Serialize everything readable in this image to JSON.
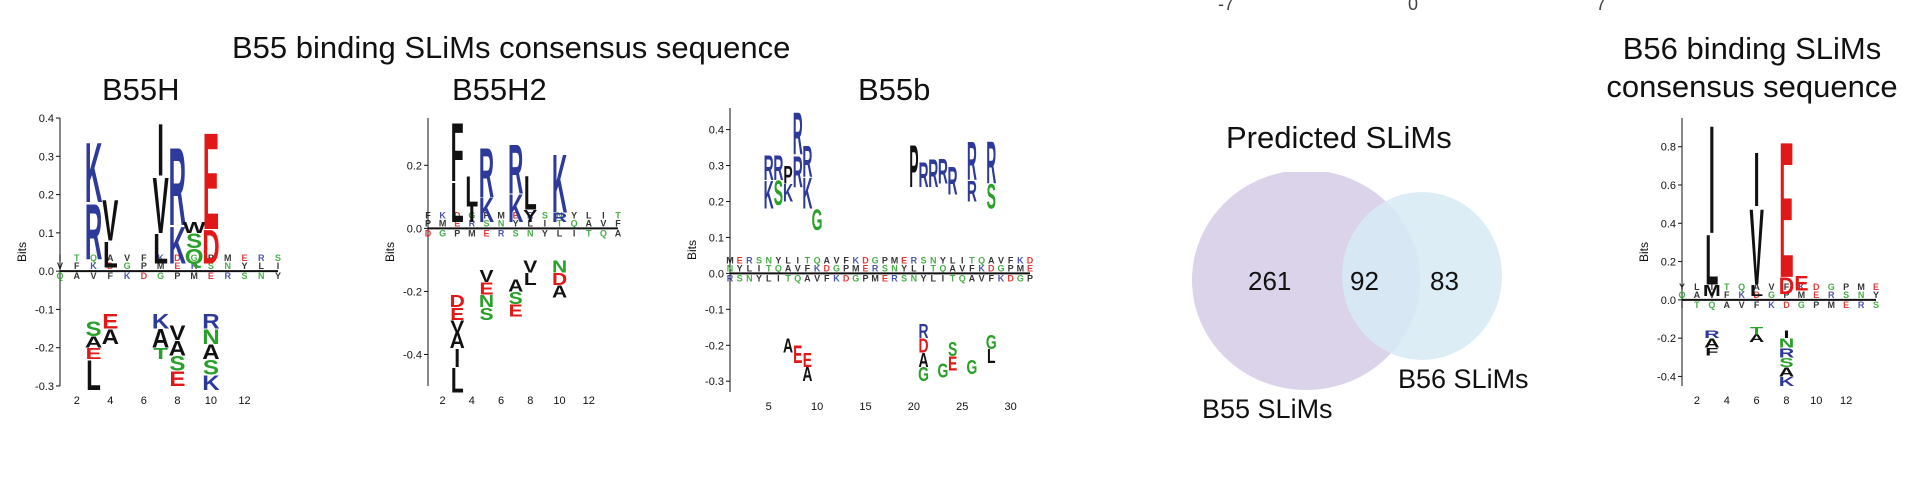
{
  "top_cut_text": [
    "-7",
    "0",
    "7"
  ],
  "b55_group_title": "B55 binding SLiMs consensus sequence",
  "b56_group_title": [
    "B56 binding SLiMs",
    "consensus sequence"
  ],
  "venn": {
    "title": "Predicted SLiMs",
    "left_only": "261",
    "overlap": "92",
    "right_only": "83",
    "left_label": "B55 SLiMs",
    "right_label": "B56 SLiMs",
    "left_color": "#d9d1e8",
    "right_color": "#d6eaf4"
  },
  "colors": {
    "basic": "#2e3a9a",
    "acidic": "#e01818",
    "polar": "#2aa02a",
    "hydrophobic": "#111111",
    "baseline": "#111111"
  },
  "chart_data": [
    {
      "type": "sequence-logo",
      "title": "B55H",
      "ylabel": "Bits",
      "ylim": [
        -0.3,
        0.4
      ],
      "yticks": [
        "0.4",
        "0.3",
        "0.2",
        "0.1",
        "0.0",
        "-0.1",
        "-0.2",
        "-0.3"
      ],
      "xticks": [
        "2",
        "4",
        "6",
        "8",
        "10",
        "12"
      ],
      "xlim": [
        1,
        14
      ],
      "letters": [
        {
          "pos": 3,
          "char": "K",
          "lo": 0.18,
          "hi": 0.34,
          "color": "basic"
        },
        {
          "pos": 3,
          "char": "R",
          "lo": 0.03,
          "hi": 0.18,
          "color": "basic"
        },
        {
          "pos": 4,
          "char": "V",
          "lo": 0.08,
          "hi": 0.19,
          "color": "hydrophobic"
        },
        {
          "pos": 4,
          "char": "L",
          "lo": 0.01,
          "hi": 0.08,
          "color": "hydrophobic"
        },
        {
          "pos": 7,
          "char": "I",
          "lo": 0.25,
          "hi": 0.39,
          "color": "hydrophobic"
        },
        {
          "pos": 7,
          "char": "V",
          "lo": 0.1,
          "hi": 0.25,
          "color": "hydrophobic"
        },
        {
          "pos": 7,
          "char": "L",
          "lo": 0.02,
          "hi": 0.1,
          "color": "hydrophobic"
        },
        {
          "pos": 8,
          "char": "R",
          "lo": 0.12,
          "hi": 0.33,
          "color": "basic"
        },
        {
          "pos": 8,
          "char": "K",
          "lo": 0.02,
          "hi": 0.12,
          "color": "basic"
        },
        {
          "pos": 9,
          "char": "W",
          "lo": 0.1,
          "hi": 0.13,
          "color": "hydrophobic"
        },
        {
          "pos": 9,
          "char": "S",
          "lo": 0.06,
          "hi": 0.1,
          "color": "polar"
        },
        {
          "pos": 9,
          "char": "Q",
          "lo": 0.02,
          "hi": 0.06,
          "color": "polar"
        },
        {
          "pos": 10,
          "char": "E",
          "lo": 0.11,
          "hi": 0.37,
          "color": "acidic"
        },
        {
          "pos": 10,
          "char": "D",
          "lo": 0.02,
          "hi": 0.11,
          "color": "acidic"
        },
        {
          "pos": 3,
          "char": "E",
          "lo": -0.23,
          "hi": -0.2,
          "color": "acidic"
        },
        {
          "pos": 3,
          "char": "L",
          "lo": -0.31,
          "hi": -0.23,
          "color": "hydrophobic"
        },
        {
          "pos": 3,
          "char": "A",
          "lo": -0.2,
          "hi": -0.17,
          "color": "hydrophobic"
        },
        {
          "pos": 3,
          "char": "S",
          "lo": -0.17,
          "hi": -0.13,
          "color": "polar"
        },
        {
          "pos": 4,
          "char": "A",
          "lo": -0.19,
          "hi": -0.15,
          "color": "hydrophobic"
        },
        {
          "pos": 4,
          "char": "E",
          "lo": -0.15,
          "hi": -0.11,
          "color": "acidic"
        },
        {
          "pos": 7,
          "char": "T",
          "lo": -0.23,
          "hi": -0.2,
          "color": "polar"
        },
        {
          "pos": 7,
          "char": "A",
          "lo": -0.2,
          "hi": -0.15,
          "color": "hydrophobic"
        },
        {
          "pos": 7,
          "char": "K",
          "lo": -0.15,
          "hi": -0.11,
          "color": "basic"
        },
        {
          "pos": 8,
          "char": "E",
          "lo": -0.3,
          "hi": -0.26,
          "color": "acidic"
        },
        {
          "pos": 8,
          "char": "S",
          "lo": -0.26,
          "hi": -0.22,
          "color": "polar"
        },
        {
          "pos": 8,
          "char": "A",
          "lo": -0.22,
          "hi": -0.18,
          "color": "hydrophobic"
        },
        {
          "pos": 8,
          "char": "V",
          "lo": -0.18,
          "hi": -0.14,
          "color": "hydrophobic"
        },
        {
          "pos": 10,
          "char": "K",
          "lo": -0.31,
          "hi": -0.27,
          "color": "basic"
        },
        {
          "pos": 10,
          "char": "S",
          "lo": -0.27,
          "hi": -0.23,
          "color": "polar"
        },
        {
          "pos": 10,
          "char": "A",
          "lo": -0.23,
          "hi": -0.19,
          "color": "hydrophobic"
        },
        {
          "pos": 10,
          "char": "N",
          "lo": -0.19,
          "hi": -0.15,
          "color": "polar"
        },
        {
          "pos": 10,
          "char": "R",
          "lo": -0.15,
          "hi": -0.11,
          "color": "basic"
        }
      ]
    },
    {
      "type": "sequence-logo",
      "title": "B55H2",
      "ylabel": "Bits",
      "ylim": [
        -0.5,
        0.35
      ],
      "yticks": [
        "0.2",
        "0.0",
        "-0.2",
        "-0.4"
      ],
      "xticks": [
        "2",
        "4",
        "6",
        "8",
        "10",
        "12"
      ],
      "xlim": [
        1,
        14
      ],
      "letters": [
        {
          "pos": 3,
          "char": "F",
          "lo": 0.15,
          "hi": 0.34,
          "color": "hydrophobic"
        },
        {
          "pos": 3,
          "char": "L",
          "lo": 0.02,
          "hi": 0.15,
          "color": "hydrophobic"
        },
        {
          "pos": 4,
          "char": "L",
          "lo": 0.07,
          "hi": 0.17,
          "color": "hydrophobic"
        },
        {
          "pos": 4,
          "char": "I",
          "lo": 0.02,
          "hi": 0.07,
          "color": "hydrophobic"
        },
        {
          "pos": 5,
          "char": "R",
          "lo": 0.1,
          "hi": 0.26,
          "color": "basic"
        },
        {
          "pos": 5,
          "char": "K",
          "lo": 0.02,
          "hi": 0.1,
          "color": "basic"
        },
        {
          "pos": 7,
          "char": "R",
          "lo": 0.11,
          "hi": 0.27,
          "color": "basic"
        },
        {
          "pos": 7,
          "char": "K",
          "lo": 0.02,
          "hi": 0.11,
          "color": "basic"
        },
        {
          "pos": 8,
          "char": "L",
          "lo": 0.06,
          "hi": 0.17,
          "color": "hydrophobic"
        },
        {
          "pos": 8,
          "char": "Y",
          "lo": 0.02,
          "hi": 0.06,
          "color": "hydrophobic"
        },
        {
          "pos": 10,
          "char": "K",
          "lo": 0.05,
          "hi": 0.24,
          "color": "basic"
        },
        {
          "pos": 10,
          "char": "R",
          "lo": 0.02,
          "hi": 0.05,
          "color": "basic"
        },
        {
          "pos": 3,
          "char": "L",
          "lo": -0.52,
          "hi": -0.44,
          "color": "hydrophobic"
        },
        {
          "pos": 3,
          "char": "I",
          "lo": -0.44,
          "hi": -0.38,
          "color": "hydrophobic"
        },
        {
          "pos": 3,
          "char": "A",
          "lo": -0.38,
          "hi": -0.33,
          "color": "hydrophobic"
        },
        {
          "pos": 3,
          "char": "V",
          "lo": -0.33,
          "hi": -0.29,
          "color": "hydrophobic"
        },
        {
          "pos": 3,
          "char": "E",
          "lo": -0.29,
          "hi": -0.25,
          "color": "acidic"
        },
        {
          "pos": 3,
          "char": "D",
          "lo": -0.25,
          "hi": -0.21,
          "color": "acidic"
        },
        {
          "pos": 5,
          "char": "S",
          "lo": -0.29,
          "hi": -0.25,
          "color": "polar"
        },
        {
          "pos": 5,
          "char": "N",
          "lo": -0.25,
          "hi": -0.21,
          "color": "polar"
        },
        {
          "pos": 5,
          "char": "E",
          "lo": -0.21,
          "hi": -0.17,
          "color": "acidic"
        },
        {
          "pos": 5,
          "char": "V",
          "lo": -0.17,
          "hi": -0.13,
          "color": "hydrophobic"
        },
        {
          "pos": 7,
          "char": "E",
          "lo": -0.28,
          "hi": -0.24,
          "color": "acidic"
        },
        {
          "pos": 7,
          "char": "S",
          "lo": -0.24,
          "hi": -0.2,
          "color": "polar"
        },
        {
          "pos": 7,
          "char": "A",
          "lo": -0.2,
          "hi": -0.16,
          "color": "hydrophobic"
        },
        {
          "pos": 8,
          "char": "L",
          "lo": -0.18,
          "hi": -0.14,
          "color": "hydrophobic"
        },
        {
          "pos": 8,
          "char": "V",
          "lo": -0.14,
          "hi": -0.1,
          "color": "hydrophobic"
        },
        {
          "pos": 10,
          "char": "A",
          "lo": -0.22,
          "hi": -0.18,
          "color": "hydrophobic"
        },
        {
          "pos": 10,
          "char": "D",
          "lo": -0.18,
          "hi": -0.14,
          "color": "acidic"
        },
        {
          "pos": 10,
          "char": "N",
          "lo": -0.14,
          "hi": -0.1,
          "color": "polar"
        }
      ]
    },
    {
      "type": "sequence-logo",
      "title": "B55b",
      "ylabel": "Bits",
      "ylim": [
        -0.33,
        0.46
      ],
      "yticks": [
        "0.4",
        "0.3",
        "0.2",
        "0.1",
        "0.0",
        "-0.1",
        "-0.2",
        "-0.3"
      ],
      "xticks": [
        "5",
        "10",
        "15",
        "20",
        "25",
        "30"
      ],
      "xlim": [
        1,
        32
      ],
      "letters": [
        {
          "pos": 5,
          "char": "R",
          "lo": 0.26,
          "hi": 0.33,
          "color": "basic"
        },
        {
          "pos": 5,
          "char": "K",
          "lo": 0.18,
          "hi": 0.26,
          "color": "basic"
        },
        {
          "pos": 6,
          "char": "R",
          "lo": 0.26,
          "hi": 0.33,
          "color": "basic"
        },
        {
          "pos": 6,
          "char": "S",
          "lo": 0.19,
          "hi": 0.26,
          "color": "polar"
        },
        {
          "pos": 7,
          "char": "P",
          "lo": 0.25,
          "hi": 0.3,
          "color": "hydrophobic"
        },
        {
          "pos": 7,
          "char": "K",
          "lo": 0.2,
          "hi": 0.25,
          "color": "basic"
        },
        {
          "pos": 8,
          "char": "R",
          "lo": 0.33,
          "hi": 0.45,
          "color": "basic"
        },
        {
          "pos": 8,
          "char": "R",
          "lo": 0.24,
          "hi": 0.33,
          "color": "basic"
        },
        {
          "pos": 9,
          "char": "R",
          "lo": 0.27,
          "hi": 0.36,
          "color": "basic"
        },
        {
          "pos": 9,
          "char": "K",
          "lo": 0.18,
          "hi": 0.27,
          "color": "basic"
        },
        {
          "pos": 10,
          "char": "G",
          "lo": 0.12,
          "hi": 0.18,
          "color": "polar"
        },
        {
          "pos": 20,
          "char": "P",
          "lo": 0.24,
          "hi": 0.36,
          "color": "hydrophobic"
        },
        {
          "pos": 21,
          "char": "R",
          "lo": 0.24,
          "hi": 0.31,
          "color": "basic"
        },
        {
          "pos": 22,
          "char": "R",
          "lo": 0.24,
          "hi": 0.32,
          "color": "basic"
        },
        {
          "pos": 23,
          "char": "R",
          "lo": 0.25,
          "hi": 0.32,
          "color": "basic"
        },
        {
          "pos": 24,
          "char": "R",
          "lo": 0.22,
          "hi": 0.3,
          "color": "basic"
        },
        {
          "pos": 26,
          "char": "R",
          "lo": 0.26,
          "hi": 0.37,
          "color": "basic"
        },
        {
          "pos": 26,
          "char": "R",
          "lo": 0.2,
          "hi": 0.26,
          "color": "basic"
        },
        {
          "pos": 28,
          "char": "R",
          "lo": 0.25,
          "hi": 0.37,
          "color": "basic"
        },
        {
          "pos": 28,
          "char": "S",
          "lo": 0.18,
          "hi": 0.25,
          "color": "polar"
        },
        {
          "pos": 7,
          "char": "A",
          "lo": -0.22,
          "hi": -0.18,
          "color": "hydrophobic"
        },
        {
          "pos": 8,
          "char": "E",
          "lo": -0.25,
          "hi": -0.2,
          "color": "acidic"
        },
        {
          "pos": 9,
          "char": "A",
          "lo": -0.3,
          "hi": -0.26,
          "color": "hydrophobic"
        },
        {
          "pos": 9,
          "char": "E",
          "lo": -0.26,
          "hi": -0.22,
          "color": "acidic"
        },
        {
          "pos": 21,
          "char": "G",
          "lo": -0.3,
          "hi": -0.26,
          "color": "polar"
        },
        {
          "pos": 21,
          "char": "A",
          "lo": -0.26,
          "hi": -0.22,
          "color": "hydrophobic"
        },
        {
          "pos": 21,
          "char": "D",
          "lo": -0.22,
          "hi": -0.18,
          "color": "acidic"
        },
        {
          "pos": 21,
          "char": "R",
          "lo": -0.18,
          "hi": -0.14,
          "color": "basic"
        },
        {
          "pos": 23,
          "char": "G",
          "lo": -0.29,
          "hi": -0.25,
          "color": "polar"
        },
        {
          "pos": 24,
          "char": "E",
          "lo": -0.27,
          "hi": -0.23,
          "color": "acidic"
        },
        {
          "pos": 24,
          "char": "S",
          "lo": -0.23,
          "hi": -0.19,
          "color": "polar"
        },
        {
          "pos": 26,
          "char": "G",
          "lo": -0.28,
          "hi": -0.24,
          "color": "polar"
        },
        {
          "pos": 28,
          "char": "L",
          "lo": -0.25,
          "hi": -0.21,
          "color": "hydrophobic"
        },
        {
          "pos": 28,
          "char": "G",
          "lo": -0.21,
          "hi": -0.17,
          "color": "polar"
        }
      ]
    },
    {
      "type": "sequence-logo",
      "title": "",
      "ylabel": "Bits",
      "ylim": [
        -0.45,
        0.95
      ],
      "yticks": [
        "0.8",
        "0.6",
        "0.4",
        "0.2",
        "0.0",
        "-0.2",
        "-0.4"
      ],
      "xticks": [
        "2",
        "4",
        "6",
        "8",
        "10",
        "12"
      ],
      "xlim": [
        1,
        14
      ],
      "letters": [
        {
          "pos": 3,
          "char": "I",
          "lo": 0.35,
          "hi": 0.93,
          "color": "hydrophobic"
        },
        {
          "pos": 3,
          "char": "L",
          "lo": 0.08,
          "hi": 0.35,
          "color": "hydrophobic"
        },
        {
          "pos": 3,
          "char": "M",
          "lo": 0.02,
          "hi": 0.08,
          "color": "hydrophobic"
        },
        {
          "pos": 6,
          "char": "I",
          "lo": 0.49,
          "hi": 0.78,
          "color": "hydrophobic"
        },
        {
          "pos": 6,
          "char": "V",
          "lo": 0.08,
          "hi": 0.49,
          "color": "hydrophobic"
        },
        {
          "pos": 6,
          "char": "L",
          "lo": 0.02,
          "hi": 0.08,
          "color": "hydrophobic"
        },
        {
          "pos": 8,
          "char": "E",
          "lo": 0.12,
          "hi": 0.85,
          "color": "acidic"
        },
        {
          "pos": 8,
          "char": "D",
          "lo": 0.03,
          "hi": 0.12,
          "color": "acidic"
        },
        {
          "pos": 9,
          "char": "E",
          "lo": 0.05,
          "hi": 0.13,
          "color": "acidic"
        },
        {
          "pos": 3,
          "char": "F",
          "lo": -0.29,
          "hi": -0.25,
          "color": "hydrophobic"
        },
        {
          "pos": 3,
          "char": "A",
          "lo": -0.25,
          "hi": -0.2,
          "color": "hydrophobic"
        },
        {
          "pos": 3,
          "char": "R",
          "lo": -0.2,
          "hi": -0.16,
          "color": "basic"
        },
        {
          "pos": 6,
          "char": "A",
          "lo": -0.22,
          "hi": -0.18,
          "color": "hydrophobic"
        },
        {
          "pos": 6,
          "char": "T",
          "lo": -0.18,
          "hi": -0.14,
          "color": "polar"
        },
        {
          "pos": 8,
          "char": "K",
          "lo": -0.45,
          "hi": -0.4,
          "color": "basic"
        },
        {
          "pos": 8,
          "char": "A",
          "lo": -0.4,
          "hi": -0.35,
          "color": "hydrophobic"
        },
        {
          "pos": 8,
          "char": "S",
          "lo": -0.35,
          "hi": -0.3,
          "color": "polar"
        },
        {
          "pos": 8,
          "char": "R",
          "lo": -0.3,
          "hi": -0.25,
          "color": "basic"
        },
        {
          "pos": 8,
          "char": "N",
          "lo": -0.25,
          "hi": -0.2,
          "color": "polar"
        },
        {
          "pos": 8,
          "char": "I",
          "lo": -0.2,
          "hi": -0.16,
          "color": "hydrophobic"
        }
      ]
    }
  ]
}
